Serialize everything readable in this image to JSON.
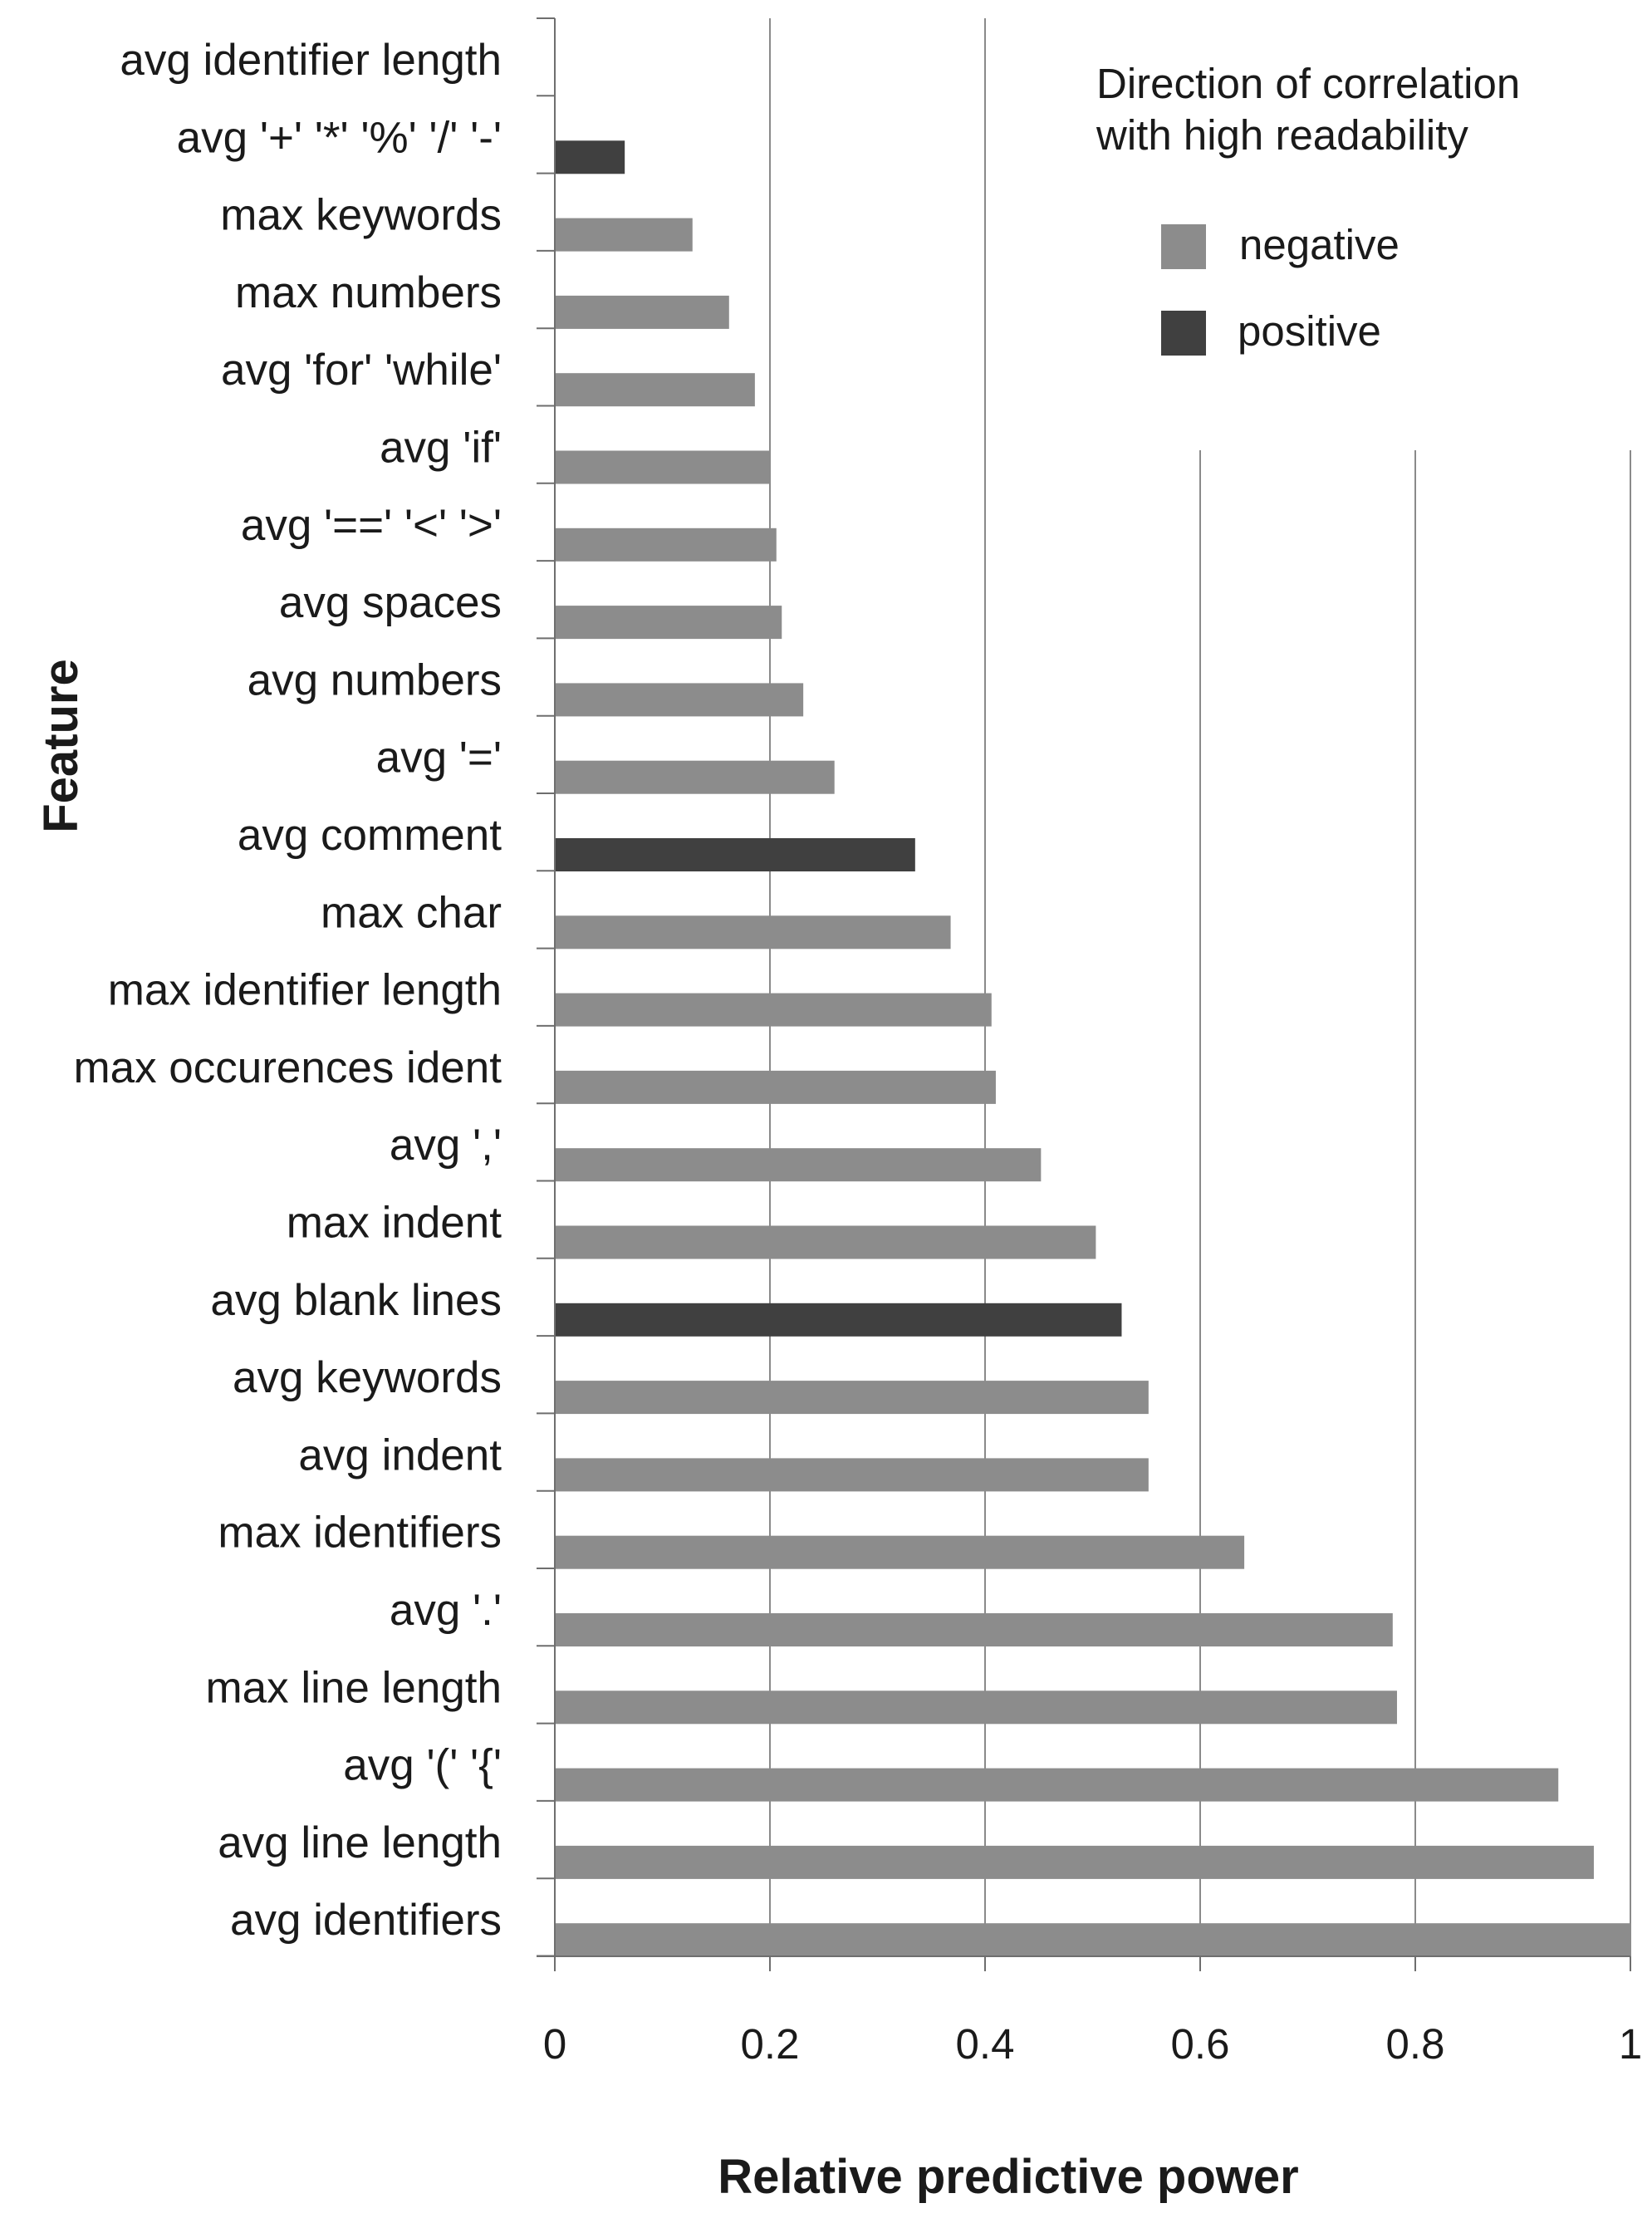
{
  "chart_data": {
    "type": "bar",
    "orientation": "horizontal",
    "title": "",
    "xlabel": "Relative predictive power",
    "ylabel": "Feature",
    "xlim": [
      0,
      1
    ],
    "xticks": [
      "0",
      "0.2",
      "0.4",
      "0.6",
      "0.8",
      "1"
    ],
    "grid": true,
    "legend_position": "top-right",
    "legend_title": "Direction of correlation with high readability",
    "legend_title_lines": [
      "Direction of correlation",
      "with high readability"
    ],
    "legend": [
      {
        "label": "negative",
        "color": "#8c8c8c"
      },
      {
        "label": "positive",
        "color": "#404040"
      }
    ],
    "categories": [
      "avg identifier length",
      "avg '+' '*' '%' '/' '-'",
      "max keywords",
      "max numbers",
      "avg 'for' 'while'",
      "avg 'if'",
      "avg '==' '<' '>'",
      "avg spaces",
      "avg numbers",
      "avg '='",
      "avg comment",
      "max char",
      "max identifier length",
      "max occurences ident",
      "avg ','",
      "max indent",
      "avg blank lines",
      "avg keywords",
      "avg indent",
      "max identifiers",
      "avg '.'",
      "max line length",
      "avg '(' '{'",
      "avg line length",
      "avg identifiers"
    ],
    "values": [
      0.0,
      0.065,
      0.128,
      0.162,
      0.186,
      0.2,
      0.206,
      0.211,
      0.231,
      0.26,
      0.335,
      0.368,
      0.406,
      0.41,
      0.452,
      0.503,
      0.527,
      0.552,
      0.552,
      0.641,
      0.779,
      0.783,
      0.933,
      0.966,
      1.0
    ],
    "direction": [
      "negative",
      "positive",
      "negative",
      "negative",
      "negative",
      "negative",
      "negative",
      "negative",
      "negative",
      "negative",
      "positive",
      "negative",
      "negative",
      "negative",
      "negative",
      "negative",
      "positive",
      "negative",
      "negative",
      "negative",
      "negative",
      "negative",
      "negative",
      "negative",
      "negative"
    ]
  }
}
